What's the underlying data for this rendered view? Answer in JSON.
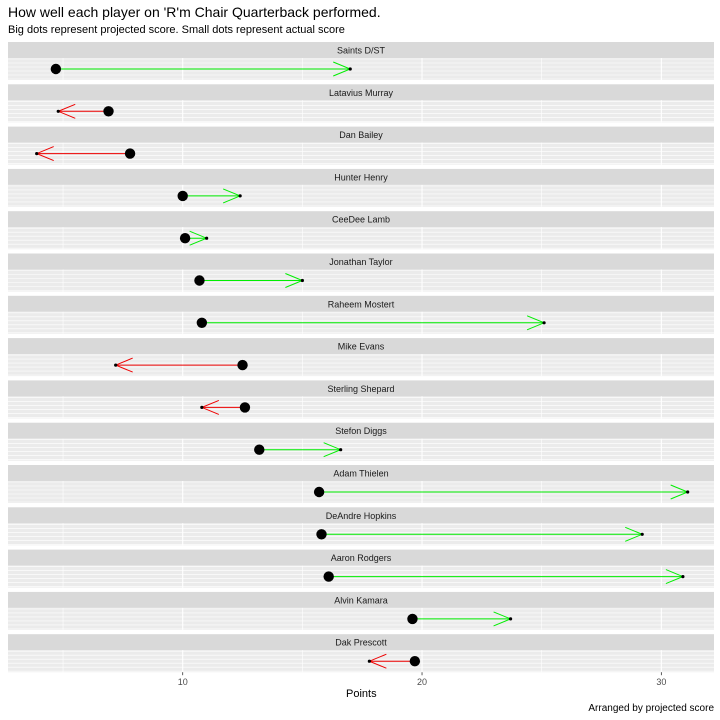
{
  "title": "How well each player on 'R'm Chair Quarterback performed.",
  "subtitle": "Big dots represent projected score.  Small dots represent actual score",
  "caption": "Arranged by projected score",
  "xlabel": "Points",
  "colors": {
    "up": "#00ee00",
    "down": "#ee0000",
    "dot": "#000000",
    "strip": "#d9d9d9",
    "panel": "#ebebeb",
    "grid": "#ffffff"
  },
  "chart_data": {
    "type": "dot-arrow",
    "xlim": [
      2.7,
      32.2
    ],
    "xticks": [
      10,
      20,
      30
    ],
    "grid": true,
    "players": [
      {
        "name": "Saints D/ST",
        "projected": 4.7,
        "actual": 17.0
      },
      {
        "name": "Latavius Murray",
        "projected": 6.9,
        "actual": 4.8
      },
      {
        "name": "Dan Bailey",
        "projected": 7.8,
        "actual": 3.9
      },
      {
        "name": "Hunter Henry",
        "projected": 10.0,
        "actual": 12.4
      },
      {
        "name": "CeeDee Lamb",
        "projected": 10.1,
        "actual": 11.0
      },
      {
        "name": "Jonathan Taylor",
        "projected": 10.7,
        "actual": 15.0
      },
      {
        "name": "Raheem Mostert",
        "projected": 10.8,
        "actual": 25.1
      },
      {
        "name": "Mike Evans",
        "projected": 12.5,
        "actual": 7.2
      },
      {
        "name": "Sterling Shepard",
        "projected": 12.6,
        "actual": 10.8
      },
      {
        "name": "Stefon Diggs",
        "projected": 13.2,
        "actual": 16.6
      },
      {
        "name": "Adam Thielen",
        "projected": 15.7,
        "actual": 31.1
      },
      {
        "name": "DeAndre Hopkins",
        "projected": 15.8,
        "actual": 29.2
      },
      {
        "name": "Aaron Rodgers",
        "projected": 16.1,
        "actual": 30.9
      },
      {
        "name": "Alvin Kamara",
        "projected": 19.6,
        "actual": 23.7
      },
      {
        "name": "Dak Prescott",
        "projected": 19.7,
        "actual": 17.8
      }
    ]
  }
}
